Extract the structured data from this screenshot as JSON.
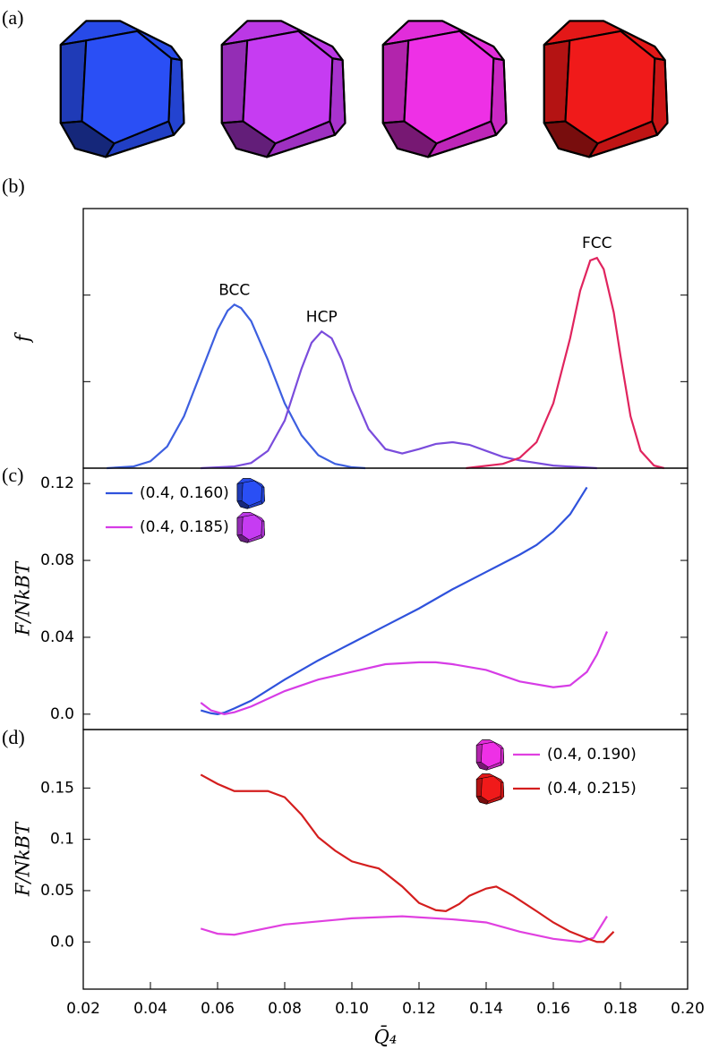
{
  "illustration": {
    "label": "(a)"
  },
  "chart_data": [
    {
      "type": "line",
      "label": "(b)",
      "y_label": "f",
      "xlim": [
        0.02,
        0.2
      ],
      "ylim": [
        0,
        3
      ],
      "yticks": [
        1,
        2
      ],
      "peak_labels": true,
      "series": [
        {
          "name": "BCC",
          "color": "#3d5fe0",
          "x": [
            0.027,
            0.035,
            0.04,
            0.045,
            0.05,
            0.055,
            0.06,
            0.063,
            0.065,
            0.067,
            0.07,
            0.075,
            0.08,
            0.085,
            0.09,
            0.095,
            0.1,
            0.104
          ],
          "values": [
            0,
            0.02,
            0.08,
            0.25,
            0.6,
            1.1,
            1.6,
            1.82,
            1.89,
            1.85,
            1.7,
            1.25,
            0.75,
            0.38,
            0.15,
            0.05,
            0.01,
            0
          ]
        },
        {
          "name": "HCP",
          "color": "#7a4cdc",
          "x": [
            0.055,
            0.065,
            0.07,
            0.075,
            0.08,
            0.085,
            0.088,
            0.091,
            0.094,
            0.097,
            0.1,
            0.105,
            0.11,
            0.115,
            0.12,
            0.125,
            0.13,
            0.135,
            0.14,
            0.145,
            0.15,
            0.16,
            0.173
          ],
          "values": [
            0,
            0.02,
            0.06,
            0.2,
            0.55,
            1.15,
            1.45,
            1.58,
            1.5,
            1.25,
            0.9,
            0.45,
            0.22,
            0.17,
            0.22,
            0.28,
            0.3,
            0.27,
            0.2,
            0.13,
            0.09,
            0.03,
            0
          ]
        },
        {
          "name": "FCC",
          "color": "#e0245e",
          "x": [
            0.134,
            0.145,
            0.15,
            0.155,
            0.16,
            0.165,
            0.168,
            0.171,
            0.173,
            0.175,
            0.178,
            0.18,
            0.183,
            0.186,
            0.19,
            0.193
          ],
          "values": [
            0,
            0.05,
            0.12,
            0.3,
            0.75,
            1.5,
            2.05,
            2.4,
            2.43,
            2.3,
            1.8,
            1.3,
            0.6,
            0.2,
            0.03,
            0
          ]
        }
      ]
    },
    {
      "type": "line",
      "label": "(c)",
      "y_label": "F/NkBT",
      "xlim": [
        0.02,
        0.2
      ],
      "ylim": [
        -0.008,
        0.128
      ],
      "yticks": [
        {
          "value": 0,
          "label": "0.0"
        },
        0.04,
        0.08,
        0.12
      ],
      "legend": "upper left",
      "series": [
        {
          "name": "(0.4, 0.160)",
          "color": "#2f52dc",
          "x": [
            0.055,
            0.058,
            0.06,
            0.062,
            0.065,
            0.07,
            0.08,
            0.09,
            0.1,
            0.11,
            0.12,
            0.13,
            0.14,
            0.15,
            0.155,
            0.16,
            0.165,
            0.17
          ],
          "values": [
            0.002,
            0.0005,
            0,
            0.0008,
            0.003,
            0.007,
            0.018,
            0.028,
            0.037,
            0.046,
            0.055,
            0.065,
            0.074,
            0.083,
            0.088,
            0.095,
            0.104,
            0.118
          ]
        },
        {
          "name": "(0.4, 0.185)",
          "color": "#d63ce6",
          "x": [
            0.055,
            0.058,
            0.062,
            0.065,
            0.07,
            0.08,
            0.09,
            0.1,
            0.11,
            0.12,
            0.125,
            0.13,
            0.14,
            0.15,
            0.16,
            0.165,
            0.17,
            0.173,
            0.176
          ],
          "values": [
            0.006,
            0.002,
            0,
            0.001,
            0.004,
            0.012,
            0.018,
            0.022,
            0.026,
            0.027,
            0.027,
            0.026,
            0.023,
            0.017,
            0.014,
            0.015,
            0.022,
            0.031,
            0.043
          ]
        }
      ]
    },
    {
      "type": "line",
      "label": "(d)",
      "y_label": "F/NkBT",
      "x_label": "Q̄₄",
      "xlim": [
        0.02,
        0.2
      ],
      "ylim": [
        -0.046,
        0.207
      ],
      "xticks": [
        0.02,
        0.04,
        0.06,
        0.08,
        {
          "value": 0.1,
          "label": "0.10"
        },
        0.12,
        0.14,
        0.16,
        0.18,
        {
          "value": 0.2,
          "label": "0.20"
        }
      ],
      "yticks": [
        {
          "value": 0,
          "label": "0.0"
        },
        0.05,
        0.1,
        0.15
      ],
      "legend": "upper right",
      "series": [
        {
          "name": "(0.4, 0.190)",
          "color": "#e040e0",
          "x": [
            0.055,
            0.06,
            0.065,
            0.08,
            0.1,
            0.115,
            0.13,
            0.14,
            0.15,
            0.16,
            0.168,
            0.172,
            0.176
          ],
          "values": [
            0.013,
            0.008,
            0.007,
            0.017,
            0.023,
            0.025,
            0.022,
            0.019,
            0.01,
            0.003,
            0,
            0.004,
            0.025
          ]
        },
        {
          "name": "(0.4, 0.215)",
          "color": "#d41e1e",
          "x": [
            0.055,
            0.06,
            0.065,
            0.075,
            0.08,
            0.085,
            0.09,
            0.095,
            0.1,
            0.105,
            0.108,
            0.11,
            0.115,
            0.12,
            0.125,
            0.128,
            0.132,
            0.135,
            0.14,
            0.143,
            0.148,
            0.155,
            0.16,
            0.165,
            0.17,
            0.173,
            0.175,
            0.178
          ],
          "values": [
            0.163,
            0.154,
            0.147,
            0.147,
            0.141,
            0.124,
            0.102,
            0.089,
            0.0785,
            0.074,
            0.0716,
            0.067,
            0.054,
            0.038,
            0.031,
            0.03,
            0.037,
            0.045,
            0.052,
            0.054,
            0.045,
            0.03,
            0.019,
            0.01,
            0.0035,
            0,
            0,
            0.01
          ]
        }
      ]
    }
  ]
}
